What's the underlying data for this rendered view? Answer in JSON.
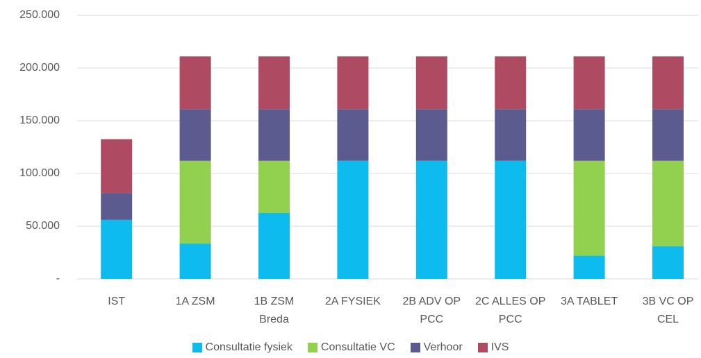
{
  "chart_data": {
    "type": "stacked_bar",
    "categories": [
      "IST",
      "1A ZSM",
      "1B ZSM Breda",
      "2A FYSIEK",
      "2B ADV OP PCC",
      "2C ALLES OP PCC",
      "3A TABLET",
      "3B VC OP CEL"
    ],
    "series": [
      {
        "name": "Consultatie fysiek",
        "color": "#0dbbef",
        "values": [
          56000,
          33500,
          62500,
          112000,
          112000,
          112000,
          22000,
          31000
        ]
      },
      {
        "name": "Consultatie VC",
        "color": "#92d050",
        "values": [
          0,
          78500,
          49500,
          0,
          0,
          0,
          90000,
          81000
        ]
      },
      {
        "name": "Verhoor",
        "color": "#5b5b8f",
        "values": [
          25500,
          49000,
          49000,
          49000,
          49000,
          49000,
          49000,
          49000
        ]
      },
      {
        "name": "IVS",
        "color": "#ae4b62",
        "values": [
          51000,
          50000,
          50000,
          50000,
          50000,
          50000,
          50000,
          50000
        ]
      }
    ],
    "ylim": [
      0,
      250000
    ],
    "yticks": [
      {
        "value": 0,
        "label": "-"
      },
      {
        "value": 50000,
        "label": "50.000"
      },
      {
        "value": 100000,
        "label": "100.000"
      },
      {
        "value": 150000,
        "label": "150.000"
      },
      {
        "value": 200000,
        "label": "200.000"
      },
      {
        "value": 250000,
        "label": "250.000"
      }
    ],
    "grid": true
  }
}
